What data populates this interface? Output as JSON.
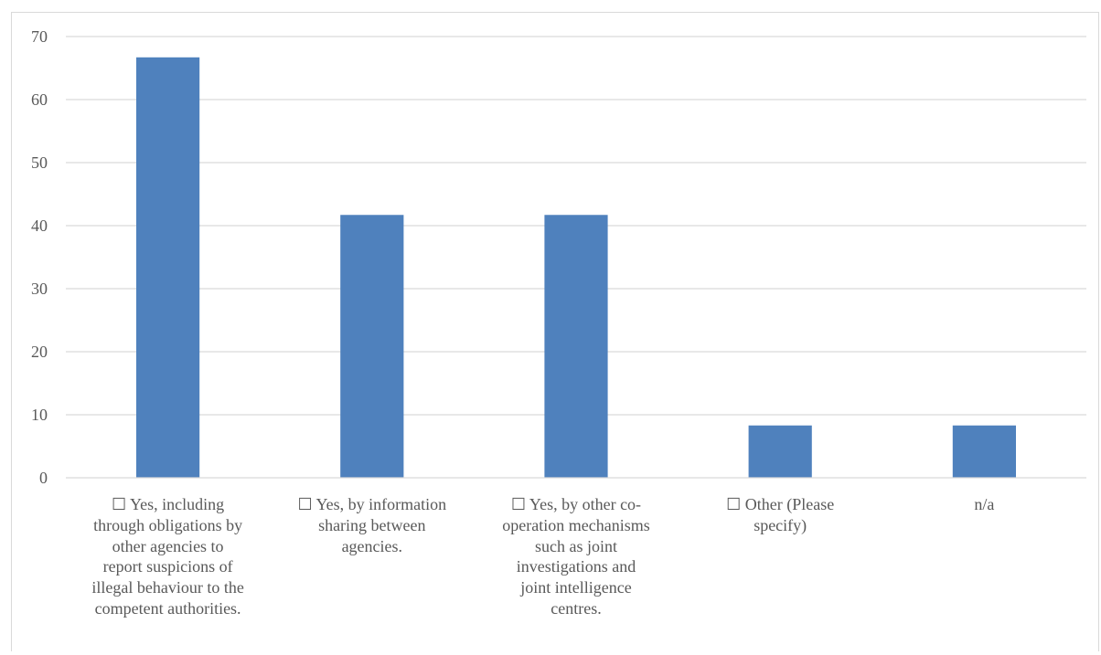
{
  "chart_data": {
    "type": "bar",
    "categories": [
      "☐ Yes, including\nthrough obligations  by\nother agencies  to\nreport suspicions  of\nillegal  behaviour to the\ncompetent authorities.",
      "☐ Yes, by information\nsharing between\nagencies.",
      "☐ Yes, by other co-\noperation mechanisms\nsuch as joint\ninvestigations  and\njoint intelligence\ncentres.",
      "☐ Other (Please\nspecify)",
      "n/a"
    ],
    "values": [
      66.7,
      41.7,
      41.7,
      8.3,
      8.3
    ],
    "ylim": [
      0,
      70
    ],
    "yticks": [
      "0",
      "10",
      "20",
      "30",
      "40",
      "50",
      "60",
      "70"
    ],
    "grid": true,
    "bar_color": "#4f81bd",
    "grid_color": "#d9d9d9"
  }
}
